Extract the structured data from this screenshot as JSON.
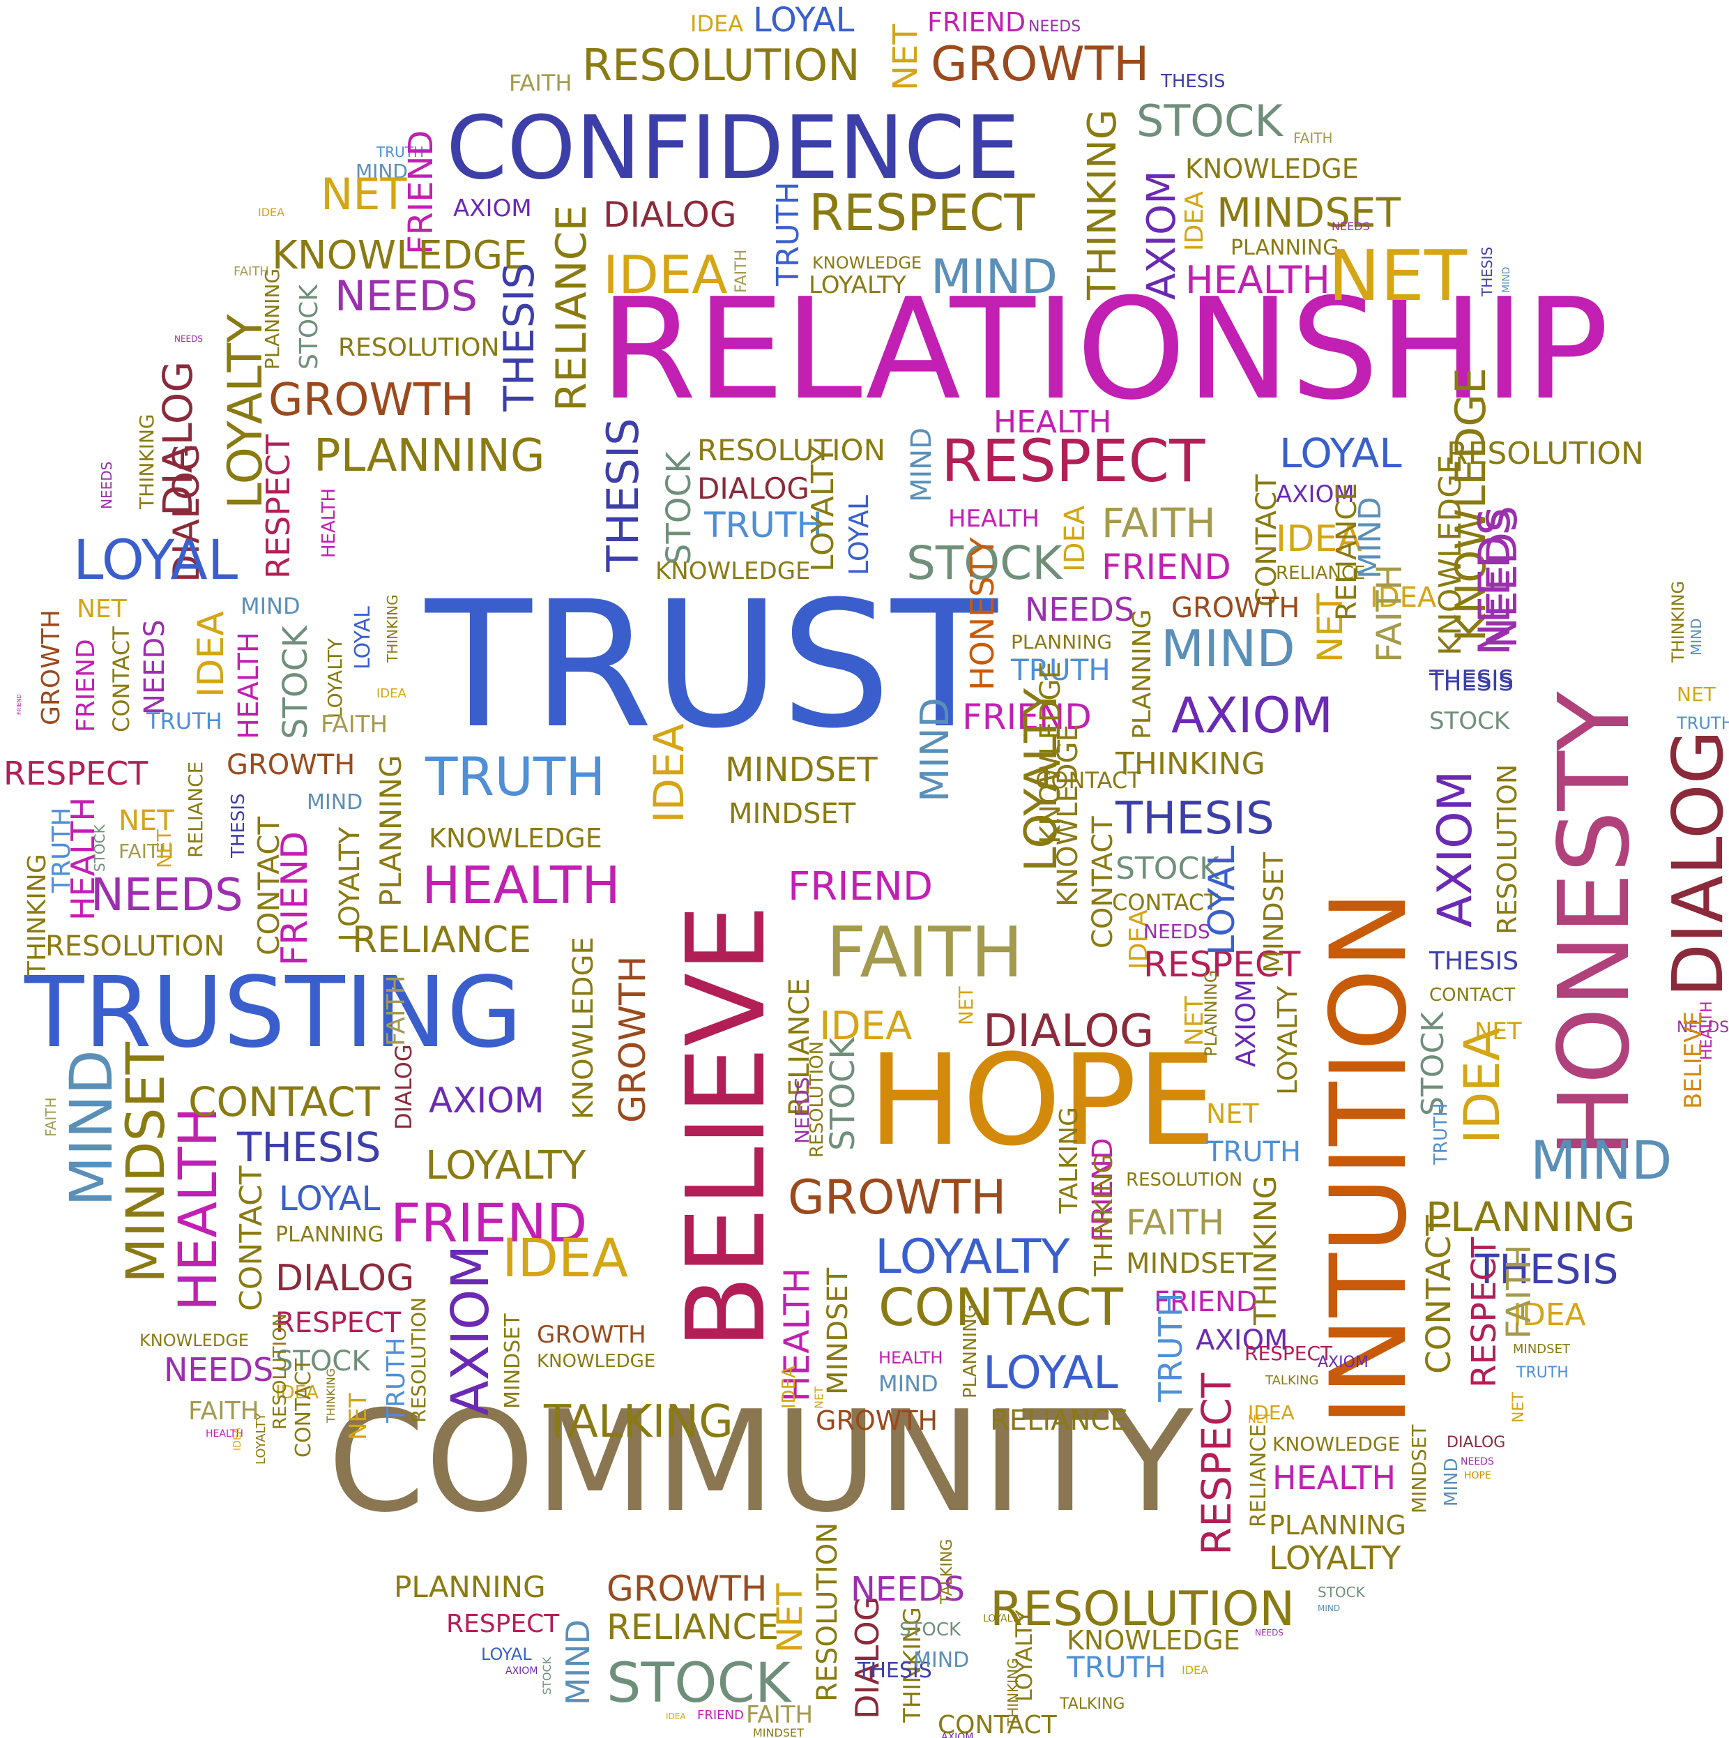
{
  "colors": {
    "blue": "#3a5fcd",
    "lightblue": "#4f8fd6",
    "steel": "#5a8fb8",
    "navy": "#3d3fa8",
    "violet": "#6a2ab3",
    "purple": "#9b2fae",
    "magenta": "#c21fb3",
    "crimson": "#b21f57",
    "rose": "#b0417a",
    "maroon": "#8b2a3a",
    "brown": "#9a4a1d",
    "orange": "#c75b0a",
    "amber": "#d38a0a",
    "gold": "#d4a514",
    "olive": "#8a7a12",
    "khaki": "#a39a4e",
    "grayolive": "#8a7a55",
    "sage": "#6f8f7a",
    "slate": "#5a6a7a",
    "tan": "#8a7650"
  },
  "words": [
    {
      "t": "RELATIONSHIP",
      "c": "magenta"
    },
    {
      "t": "TRUST",
      "c": "blue"
    },
    {
      "t": "COMMUNITY",
      "c": "tan"
    },
    {
      "t": "CONFIDENCE",
      "c": "navy"
    },
    {
      "t": "TRUSTING",
      "c": "blue"
    },
    {
      "t": "HOPE",
      "c": "amber"
    },
    {
      "t": "BELIEVE",
      "c": "crimson"
    },
    {
      "t": "INTUITION",
      "c": "orange"
    },
    {
      "t": "HONESTY",
      "c": "rose"
    },
    {
      "t": "DIALOG",
      "c": "maroon"
    },
    {
      "t": "FAITH",
      "c": "khaki"
    },
    {
      "t": "RESPECT",
      "c": "crimson"
    },
    {
      "t": "RESOLUTION",
      "c": "olive"
    },
    {
      "t": "GROWTH",
      "c": "brown"
    },
    {
      "t": "RELIANCE",
      "c": "olive"
    },
    {
      "t": "MIND",
      "c": "steel"
    },
    {
      "t": "NET",
      "c": "gold"
    },
    {
      "t": "IDEA",
      "c": "gold"
    },
    {
      "t": "KNOWLEDGE",
      "c": "olive"
    },
    {
      "t": "NEEDS",
      "c": "purple"
    },
    {
      "t": "PLANNING",
      "c": "olive"
    },
    {
      "t": "STOCK",
      "c": "sage"
    },
    {
      "t": "FRIEND",
      "c": "magenta"
    },
    {
      "t": "LOYAL",
      "c": "blue"
    },
    {
      "t": "LOYALTY",
      "c": "olive"
    },
    {
      "t": "TRUTH",
      "c": "lightblue"
    },
    {
      "t": "HEALTH",
      "c": "magenta"
    },
    {
      "t": "THESIS",
      "c": "navy"
    },
    {
      "t": "AXIOM",
      "c": "violet"
    },
    {
      "t": "MINDSET",
      "c": "olive"
    },
    {
      "t": "THINKING",
      "c": "olive"
    },
    {
      "t": "CONTACT",
      "c": "olive"
    },
    {
      "t": "TALKING",
      "c": "olive"
    }
  ]
}
